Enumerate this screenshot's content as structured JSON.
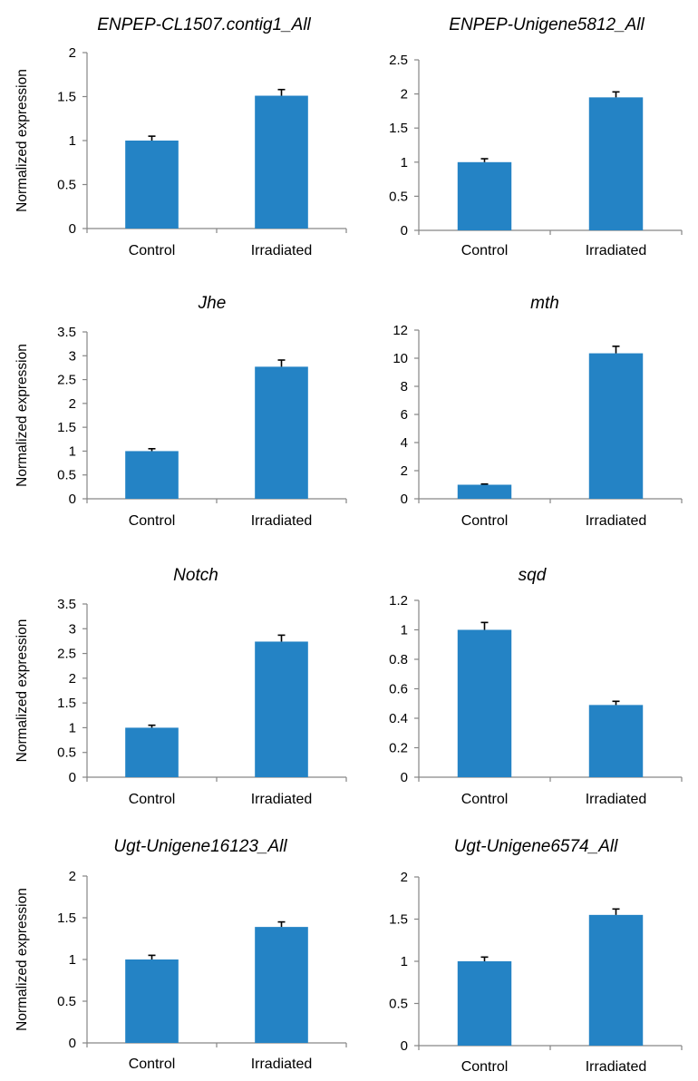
{
  "figure": {
    "bar_color": "#2483c5",
    "axis_color": "#868686"
  },
  "chart_data": [
    {
      "type": "bar",
      "title": "ENPEP-CL1507.contig1_All",
      "ylabel": "Normalized expression",
      "xlabel": "",
      "categories": [
        "Control",
        "Irradiated"
      ],
      "values": [
        1.0,
        1.51
      ],
      "errors": [
        0.05,
        0.07
      ],
      "ylim": [
        0,
        2
      ],
      "yticks": [
        "0",
        "0.5",
        "1",
        "1.5",
        "2"
      ]
    },
    {
      "type": "bar",
      "title": "ENPEP-Unigene5812_All",
      "ylabel": "",
      "xlabel": "",
      "categories": [
        "Control",
        "Irradiated"
      ],
      "values": [
        1.0,
        1.95
      ],
      "errors": [
        0.05,
        0.08
      ],
      "ylim": [
        0,
        2.5
      ],
      "yticks": [
        "0",
        "0.5",
        "1",
        "1.5",
        "2",
        "2.5"
      ]
    },
    {
      "type": "bar",
      "title": "Jhe",
      "ylabel": "Normalized expression",
      "xlabel": "",
      "categories": [
        "Control",
        "Irradiated"
      ],
      "values": [
        1.0,
        2.77
      ],
      "errors": [
        0.05,
        0.14
      ],
      "ylim": [
        0,
        3.5
      ],
      "yticks": [
        "0",
        "0.5",
        "1",
        "1.5",
        "2",
        "2.5",
        "3",
        "3.5"
      ]
    },
    {
      "type": "bar",
      "title": "mth",
      "ylabel": "",
      "xlabel": "",
      "categories": [
        "Control",
        "Irradiated"
      ],
      "values": [
        1.0,
        10.35
      ],
      "errors": [
        0.05,
        0.5
      ],
      "ylim": [
        0,
        12
      ],
      "yticks": [
        "0",
        "2",
        "4",
        "6",
        "8",
        "10",
        "12"
      ]
    },
    {
      "type": "bar",
      "title": "Notch",
      "ylabel": "Normalized expression",
      "xlabel": "",
      "categories": [
        "Control",
        "Irradiated"
      ],
      "values": [
        1.0,
        2.74
      ],
      "errors": [
        0.05,
        0.13
      ],
      "ylim": [
        0,
        3.5
      ],
      "yticks": [
        "0",
        "0.5",
        "1",
        "1.5",
        "2",
        "2.5",
        "3",
        "3.5"
      ]
    },
    {
      "type": "bar",
      "title": "sqd",
      "ylabel": "",
      "xlabel": "",
      "categories": [
        "Control",
        "Irradiated"
      ],
      "values": [
        1.0,
        0.49
      ],
      "errors": [
        0.05,
        0.025
      ],
      "ylim": [
        0,
        1.2
      ],
      "yticks": [
        "0",
        "0.2",
        "0.4",
        "0.6",
        "0.8",
        "1",
        "1.2"
      ]
    },
    {
      "type": "bar",
      "title": "Ugt-Unigene16123_All",
      "ylabel": "Normalized expression",
      "xlabel": "",
      "categories": [
        "Control",
        "Irradiated"
      ],
      "values": [
        1.0,
        1.39
      ],
      "errors": [
        0.05,
        0.06
      ],
      "ylim": [
        0,
        2
      ],
      "yticks": [
        "0",
        "0.5",
        "1",
        "1.5",
        "2"
      ]
    },
    {
      "type": "bar",
      "title": "Ugt-Unigene6574_All",
      "ylabel": "",
      "xlabel": "",
      "categories": [
        "Control",
        "Irradiated"
      ],
      "values": [
        1.0,
        1.55
      ],
      "errors": [
        0.05,
        0.07
      ],
      "ylim": [
        0,
        2
      ],
      "yticks": [
        "0",
        "0.5",
        "1",
        "1.5",
        "2"
      ]
    }
  ]
}
